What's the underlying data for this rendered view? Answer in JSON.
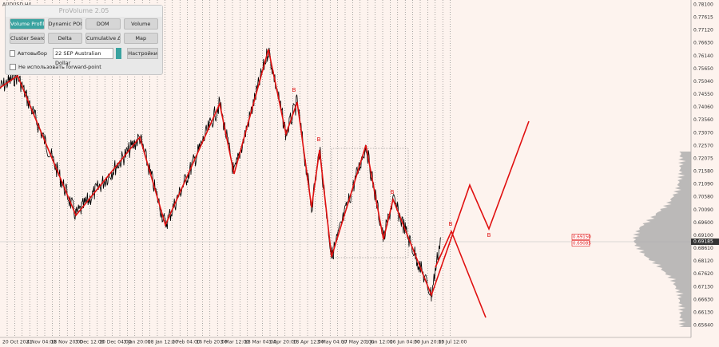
{
  "symbol": "AUDUSD,H4",
  "panel": {
    "title": "ProVolume 2.05",
    "buttons": [
      [
        "Volume Profile",
        "Dynamic POC",
        "DOM",
        "Volume"
      ],
      [
        "Cluster Search",
        "Delta",
        "Cumulative Δ",
        "Map"
      ]
    ],
    "auto_select": "Автовыбор",
    "instrument": "22 SEP Australian Dollar",
    "settings": "Настройки",
    "forward_point": "Не использовать forward-point"
  },
  "price_axis": [
    "0.78100",
    "0.77615",
    "0.77120",
    "0.76630",
    "0.76140",
    "0.75650",
    "0.75040",
    "0.74550",
    "0.74060",
    "0.73560",
    "0.73070",
    "0.72570",
    "0.72075",
    "0.71580",
    "0.71090",
    "0.70580",
    "0.70090",
    "0.69600",
    "0.69100",
    "0.68610",
    "0.68120",
    "0.67620",
    "0.67130",
    "0.66630",
    "0.66130",
    "0.65640"
  ],
  "current_price": "0.69185",
  "level_labels": [
    "0.69150",
    "0.69085"
  ],
  "time_axis": [
    "20 Oct 2021",
    "4 Nov 04:00",
    "18 Nov 20:00",
    "3 Dec 12:00",
    "20 Dec 04:00",
    "3 Jan 20:00",
    "18 Jan 12:00",
    "2 Feb 04:00",
    "16 Feb 20:00",
    "3 Mar 12:00",
    "18 Mar 04:00",
    "1 Apr 20:00",
    "18 Apr 12:00",
    "3 May 04:00",
    "17 May 20:00",
    "1 Jun 12:00",
    "16 Jun 04:00",
    "30 Jun 20:00",
    "15 Jul 12:00"
  ],
  "marker": "B"
}
